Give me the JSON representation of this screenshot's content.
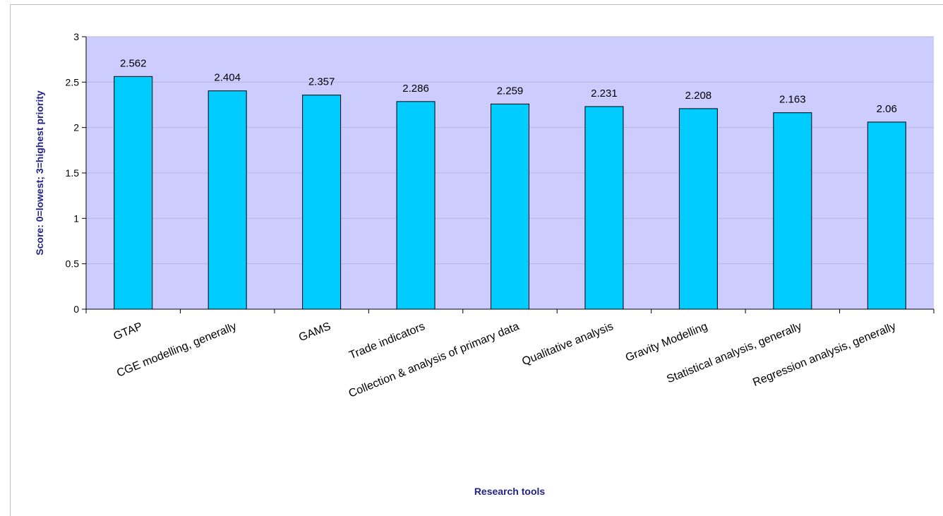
{
  "chart_data": {
    "type": "bar",
    "title": "",
    "xlabel": "Research tools",
    "ylabel": "Score: 0=lowest; 3=highest priority",
    "categories": [
      "GTAP",
      "CGE modelling, generally",
      "GAMS",
      "Trade indicators",
      "Collection & analysis of primary data",
      "Qualitative analysis",
      "Gravity Modelling",
      "Statistical analysis, generally",
      "Regression analysis, generally"
    ],
    "values": [
      2.562,
      2.404,
      2.357,
      2.286,
      2.259,
      2.231,
      2.208,
      2.163,
      2.06
    ],
    "value_labels": [
      "2.562",
      "2.404",
      "2.357",
      "2.286",
      "2.259",
      "2.231",
      "2.208",
      "2.163",
      "2.06"
    ],
    "ylim": [
      0,
      3
    ],
    "yticks": [
      "0",
      "0.5",
      "1",
      "1.5",
      "2",
      "2.5",
      "3"
    ],
    "grid": true,
    "legend": "none",
    "colors": {
      "plot_background": "#ccccff",
      "bar_fill": "#00ccff",
      "bar_stroke": "#000000",
      "gridline": "#b8b8d8",
      "axis_title": "#222288"
    }
  }
}
